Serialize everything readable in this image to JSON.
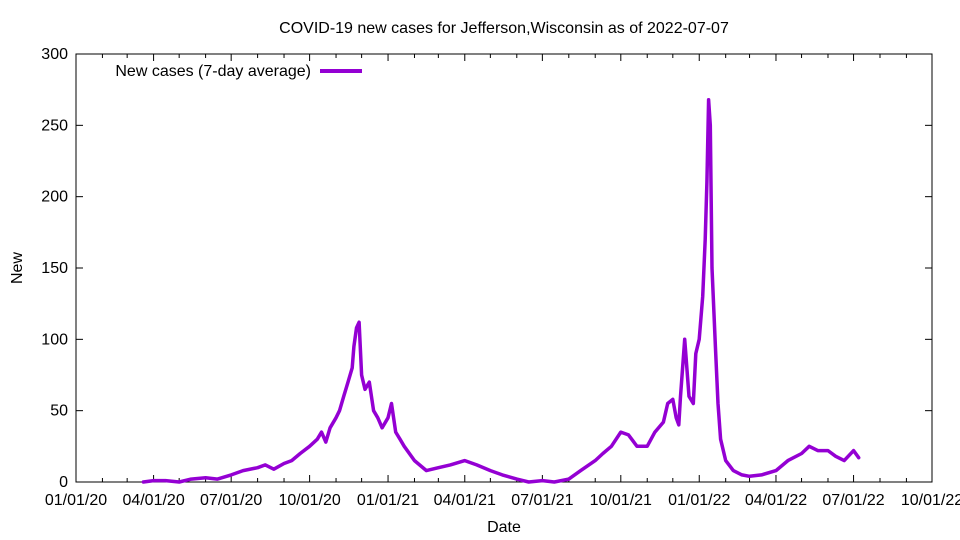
{
  "chart_data": {
    "type": "line",
    "title": "COVID-19 new cases for Jefferson,Wisconsin as of 2022-07-07",
    "xlabel": "Date",
    "ylabel": "New",
    "xlim": [
      "2020-01-01",
      "2022-10-01"
    ],
    "ylim": [
      0,
      300
    ],
    "yticks": [
      0,
      50,
      100,
      150,
      200,
      250,
      300
    ],
    "xticks": [
      "01/01/20",
      "04/01/20",
      "07/01/20",
      "10/01/20",
      "01/01/21",
      "04/01/21",
      "07/01/21",
      "10/01/21",
      "01/01/22",
      "04/01/22",
      "07/01/22",
      "10/01/22"
    ],
    "xtick_dates": [
      "2020-01-01",
      "2020-04-01",
      "2020-07-01",
      "2020-10-01",
      "2021-01-01",
      "2021-04-01",
      "2021-07-01",
      "2021-10-01",
      "2022-01-01",
      "2022-04-01",
      "2022-07-01",
      "2022-10-01"
    ],
    "grid": false,
    "legend": "top-left",
    "series": [
      {
        "name": "New cases (7-day average)",
        "color": "#9400d3",
        "x": [
          "2020-03-20",
          "2020-04-01",
          "2020-04-15",
          "2020-05-01",
          "2020-05-15",
          "2020-06-01",
          "2020-06-15",
          "2020-07-01",
          "2020-07-15",
          "2020-08-01",
          "2020-08-10",
          "2020-08-20",
          "2020-09-01",
          "2020-09-10",
          "2020-09-20",
          "2020-10-01",
          "2020-10-10",
          "2020-10-15",
          "2020-10-20",
          "2020-10-25",
          "2020-11-01",
          "2020-11-05",
          "2020-11-10",
          "2020-11-15",
          "2020-11-20",
          "2020-11-22",
          "2020-11-25",
          "2020-11-28",
          "2020-12-01",
          "2020-12-05",
          "2020-12-10",
          "2020-12-15",
          "2020-12-20",
          "2020-12-25",
          "2021-01-01",
          "2021-01-05",
          "2021-01-10",
          "2021-01-15",
          "2021-01-20",
          "2021-02-01",
          "2021-02-15",
          "2021-03-01",
          "2021-03-15",
          "2021-04-01",
          "2021-04-15",
          "2021-05-01",
          "2021-05-15",
          "2021-06-01",
          "2021-06-15",
          "2021-07-01",
          "2021-07-15",
          "2021-08-01",
          "2021-08-15",
          "2021-09-01",
          "2021-09-10",
          "2021-09-20",
          "2021-10-01",
          "2021-10-10",
          "2021-10-20",
          "2021-11-01",
          "2021-11-10",
          "2021-11-20",
          "2021-11-25",
          "2021-12-01",
          "2021-12-05",
          "2021-12-08",
          "2021-12-10",
          "2021-12-15",
          "2021-12-20",
          "2021-12-25",
          "2021-12-28",
          "2022-01-01",
          "2022-01-05",
          "2022-01-08",
          "2022-01-10",
          "2022-01-12",
          "2022-01-14",
          "2022-01-16",
          "2022-01-20",
          "2022-01-23",
          "2022-01-26",
          "2022-02-01",
          "2022-02-10",
          "2022-02-20",
          "2022-03-01",
          "2022-03-15",
          "2022-04-01",
          "2022-04-15",
          "2022-05-01",
          "2022-05-10",
          "2022-05-20",
          "2022-06-01",
          "2022-06-10",
          "2022-06-20",
          "2022-07-01",
          "2022-07-07"
        ],
        "y": [
          0,
          1,
          1,
          0,
          2,
          3,
          2,
          5,
          8,
          10,
          12,
          9,
          13,
          15,
          20,
          25,
          30,
          35,
          28,
          38,
          45,
          50,
          60,
          70,
          80,
          95,
          108,
          112,
          75,
          65,
          70,
          50,
          45,
          38,
          45,
          55,
          35,
          30,
          25,
          15,
          8,
          10,
          12,
          15,
          12,
          8,
          5,
          2,
          0,
          1,
          0,
          2,
          8,
          15,
          20,
          25,
          35,
          33,
          25,
          25,
          35,
          42,
          55,
          58,
          45,
          40,
          60,
          100,
          60,
          55,
          90,
          100,
          130,
          170,
          210,
          268,
          250,
          150,
          95,
          55,
          30,
          15,
          8,
          5,
          4,
          5,
          8,
          15,
          20,
          25,
          22,
          22,
          18,
          15,
          22,
          17
        ]
      }
    ]
  }
}
